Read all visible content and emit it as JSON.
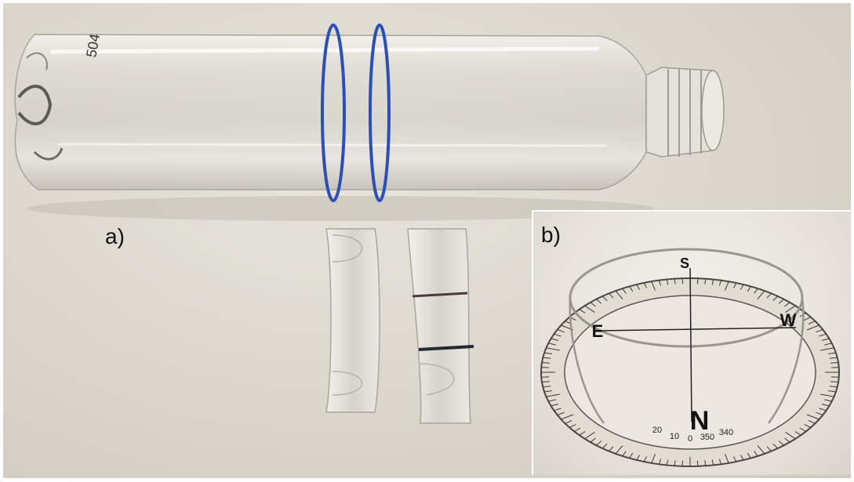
{
  "figure": {
    "panel_a": {
      "label": "a)"
    },
    "panel_b": {
      "label": "b)",
      "compass": {
        "north": "N",
        "south": "S",
        "east": "E",
        "west": "W",
        "degree_labels_bottom": [
          "20",
          "10",
          "0",
          "350",
          "340"
        ]
      }
    }
  }
}
